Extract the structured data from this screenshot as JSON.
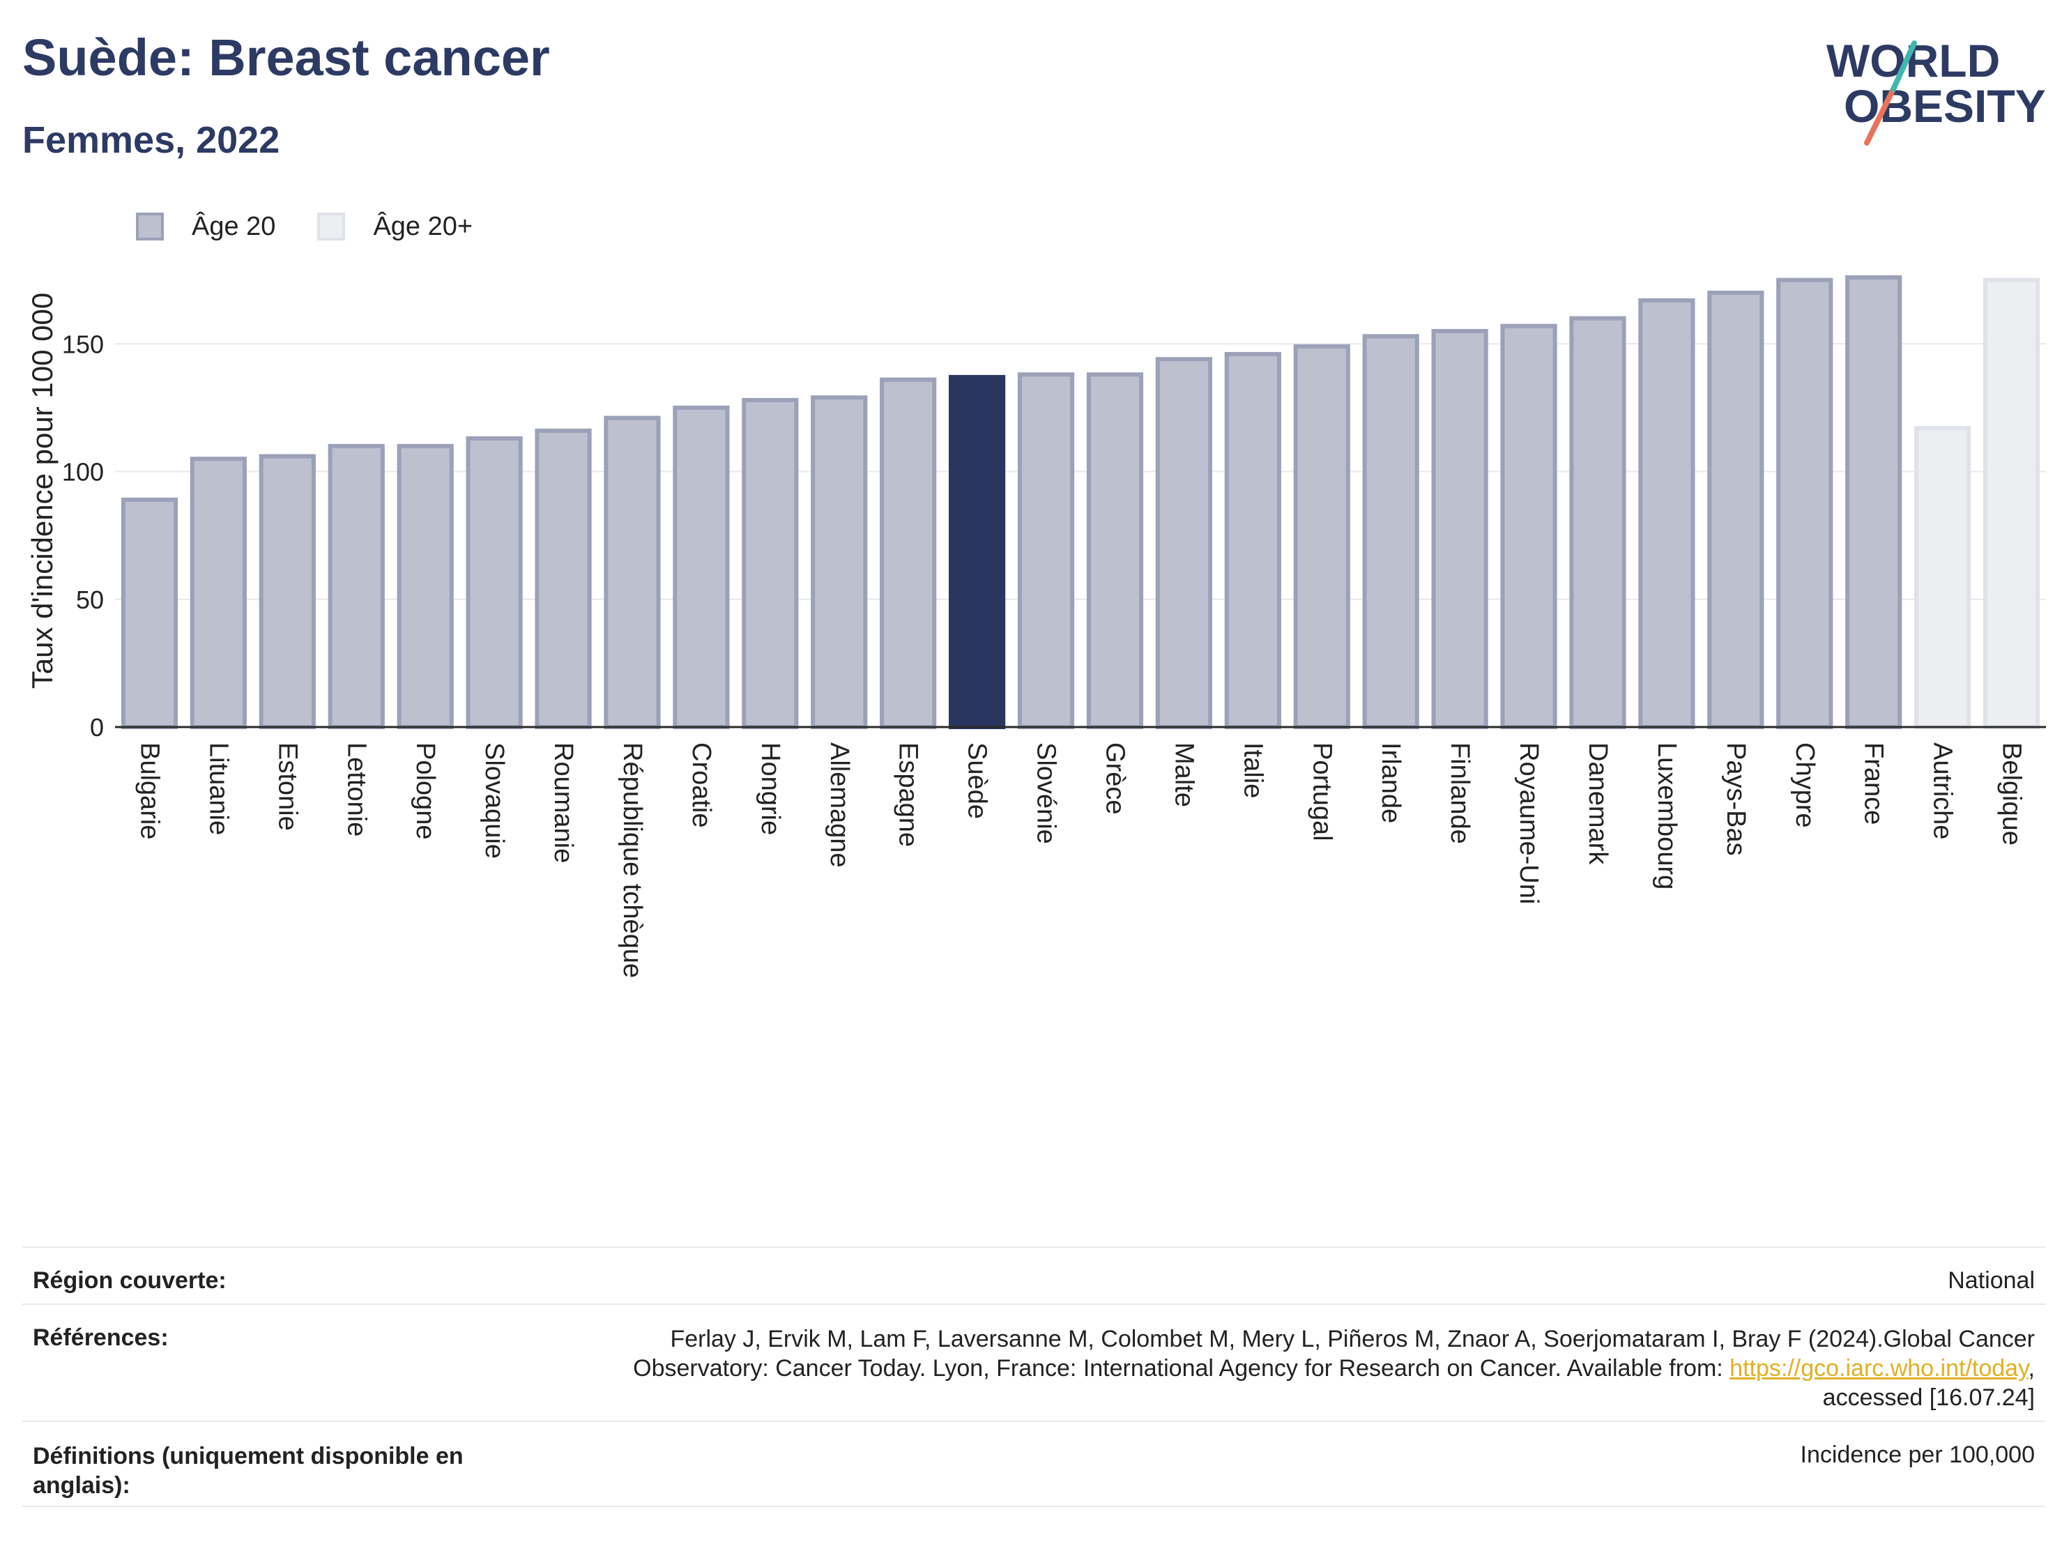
{
  "header": {
    "title": "Suède: Breast cancer",
    "subtitle": "Femmes, 2022"
  },
  "logo": {
    "line1": "WORLD",
    "line2": "OBESITY"
  },
  "legend": [
    {
      "label": "Âge 20"
    },
    {
      "label": "Âge 20+"
    }
  ],
  "colors": {
    "age20_fill": "#bcc0cf",
    "age20_border": "#9ba1b8",
    "highlight": "#2b3660",
    "age20plus_fill": "#eceef2",
    "age20plus_border": "#dfe2e8",
    "axis": "#2b2b2b",
    "grid": "#e8e8ec",
    "logo_slash_red": "#e8735a",
    "logo_slash_teal": "#3fb8b0"
  },
  "chart_data": {
    "type": "bar",
    "ylabel": "Taux d'incidence pour 100 000",
    "ylim": [
      0,
      185
    ],
    "yticks": [
      0,
      50,
      100,
      150
    ],
    "grid": true,
    "legend_position": "top-left",
    "highlight": "Suède",
    "categories": [
      "Bulgarie",
      "Lituanie",
      "Estonie",
      "Lettonie",
      "Pologne",
      "Slovaquie",
      "Roumanie",
      "République tchèque",
      "Croatie",
      "Hongrie",
      "Allemagne",
      "Espagne",
      "Suède",
      "Slovénie",
      "Grèce",
      "Malte",
      "Italie",
      "Portugal",
      "Irlande",
      "Finlande",
      "Royaume-Uni",
      "Danemark",
      "Luxembourg",
      "Pays-Bas",
      "Chypre",
      "France",
      "Autriche",
      "Belgique"
    ],
    "series": [
      {
        "name": "Âge 20",
        "values": [
          89,
          105,
          106,
          110,
          110,
          113,
          116,
          121,
          125,
          128,
          129,
          136,
          137,
          138,
          138,
          144,
          146,
          149,
          153,
          155,
          157,
          160,
          167,
          170,
          175,
          176,
          null,
          null
        ]
      },
      {
        "name": "Âge 20+",
        "values": [
          null,
          null,
          null,
          null,
          null,
          null,
          null,
          null,
          null,
          null,
          null,
          null,
          null,
          null,
          null,
          null,
          null,
          null,
          null,
          null,
          null,
          null,
          null,
          null,
          null,
          null,
          117,
          175
        ]
      }
    ]
  },
  "meta": {
    "region_label": "Région couverte:",
    "region_value": "National",
    "refs_label": "Références:",
    "refs_line1": "Ferlay J, Ervik M, Lam F, Laversanne M, Colombet M, Mery L, Piñeros M, Znaor A, Soerjomataram I, Bray F (2024).Global Cancer",
    "refs_line2_pre": "Observatory: Cancer Today. Lyon, France: International Agency for Research on Cancer. Available from: ",
    "refs_link": "https://gco.iarc.who.int/today",
    "refs_line2_post": ",",
    "refs_line3": "accessed [16.07.24]",
    "defs_label_1": "Définitions (uniquement disponible en",
    "defs_label_2": "anglais):",
    "defs_value": "Incidence per 100,000"
  }
}
